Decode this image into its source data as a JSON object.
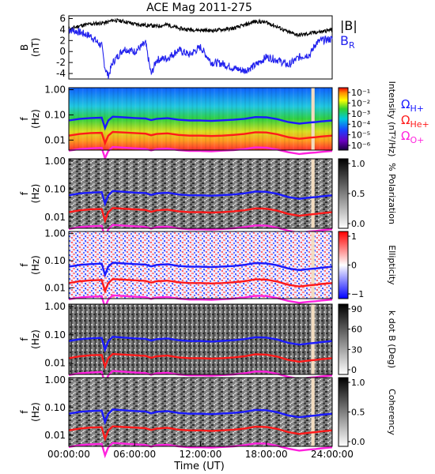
{
  "title": "ACE Mag 2011-275",
  "colors": {
    "B": "#000000",
    "BR": "#2222ee",
    "H": "#1a1aff",
    "He": "#ff1a1a",
    "O": "#ff22dd",
    "stripe": "#f2dcc0"
  },
  "legend": {
    "B": "|B|",
    "BR_main": "B",
    "BR_sub": "R",
    "H_main": "Ω",
    "H_sub": "H+",
    "He_main": "Ω",
    "He_sub": "He+",
    "O_main": "Ω",
    "O_sub": "O+"
  },
  "chart_data": [
    {
      "type": "line",
      "name": "field",
      "ylabel_main": "B",
      "ylabel_unit": "(nT)",
      "ylim": [
        -5,
        6.5
      ],
      "yticks": [
        "6",
        "4",
        "2",
        "0",
        "-2",
        "-4"
      ],
      "series": [
        {
          "name": "|B|",
          "x": [
            0,
            1,
            2,
            3,
            3.5,
            4,
            5,
            6,
            7,
            8,
            9,
            10,
            11,
            12,
            13,
            14,
            15,
            16,
            17,
            18,
            19,
            20,
            21,
            22,
            22.5,
            23,
            24
          ],
          "values": [
            4.0,
            4.7,
            5.0,
            5.2,
            5.3,
            5.7,
            5.5,
            5.0,
            4.8,
            4.6,
            4.9,
            4.2,
            4.0,
            3.9,
            3.8,
            4.0,
            4.2,
            4.8,
            5.5,
            5.3,
            4.5,
            3.5,
            3.0,
            3.3,
            3.5,
            3.6,
            4.0
          ]
        },
        {
          "name": "B_R",
          "x": [
            0,
            1,
            2,
            3,
            3.3,
            3.6,
            4,
            5,
            6,
            7,
            7.5,
            8,
            9,
            10,
            11,
            12,
            13,
            14,
            15,
            16,
            17,
            18,
            19,
            20,
            21,
            22,
            22.5,
            23,
            24
          ],
          "values": [
            4.0,
            3.5,
            2.8,
            1.0,
            -3.0,
            -4.5,
            -2.0,
            0.5,
            0.0,
            1.5,
            -4.2,
            -1.5,
            -1.2,
            0.3,
            -0.6,
            0.8,
            -2.0,
            -2.2,
            -3.0,
            -3.5,
            -2.5,
            -1.0,
            -1.5,
            -2.5,
            -1.0,
            -0.5,
            1.5,
            2.0,
            2.3
          ]
        }
      ]
    },
    {
      "type": "heatmap",
      "name": "intensity",
      "ylabel_main": "f",
      "ylabel_unit": "(Hz)",
      "colorbar_label": "Intensity (nT²/Hz)",
      "colorbar_ticks": [
        "10⁻¹",
        "10⁻²",
        "10⁻³",
        "10⁻⁴",
        "10⁻⁵",
        "10⁻⁶"
      ]
    },
    {
      "type": "heatmap",
      "name": "polarization",
      "ylabel_main": "f",
      "ylabel_unit": "(Hz)",
      "colorbar_label": "% Polarization",
      "colorbar_ticks": [
        "1.0",
        "0.5",
        "0.0"
      ]
    },
    {
      "type": "heatmap",
      "name": "ellipticity",
      "ylabel_main": "f",
      "ylabel_unit": "(Hz)",
      "colorbar_label": "Ellipticity",
      "colorbar_ticks": [
        "1",
        "0",
        "−1"
      ]
    },
    {
      "type": "heatmap",
      "name": "kdotb",
      "ylabel_main": "f",
      "ylabel_unit": "(Hz)",
      "colorbar_label": "k dot B (Deg)",
      "colorbar_ticks": [
        "90",
        "60",
        "30",
        "0"
      ]
    },
    {
      "type": "heatmap",
      "name": "coherency",
      "ylabel_main": "f",
      "ylabel_unit": "(Hz)",
      "colorbar_label": "Coherency",
      "colorbar_ticks": [
        "1.0",
        "0.5",
        "0.0"
      ]
    }
  ],
  "freq_axis": {
    "ylim": [
      0.004,
      1.2
    ],
    "yticks": [
      1.0,
      0.1,
      0.01
    ],
    "ytick_labels": [
      "1.00",
      "0.10",
      "0.01"
    ]
  },
  "gyro": {
    "x": [
      0,
      1,
      2,
      3,
      3.3,
      3.6,
      4,
      5,
      6,
      7,
      7.5,
      8,
      9,
      10,
      11,
      12,
      13,
      14,
      15,
      16,
      17,
      18,
      19,
      20,
      21,
      22,
      22.5,
      23,
      24
    ],
    "H": [
      0.06,
      0.07,
      0.075,
      0.078,
      0.03,
      0.06,
      0.085,
      0.08,
      0.075,
      0.072,
      0.062,
      0.07,
      0.074,
      0.064,
      0.06,
      0.06,
      0.058,
      0.061,
      0.064,
      0.07,
      0.082,
      0.08,
      0.068,
      0.052,
      0.045,
      0.05,
      0.052,
      0.055,
      0.06
    ],
    "He": [
      0.015,
      0.0175,
      0.019,
      0.0195,
      0.0075,
      0.015,
      0.021,
      0.02,
      0.019,
      0.018,
      0.0155,
      0.0175,
      0.0185,
      0.016,
      0.015,
      0.015,
      0.0145,
      0.015,
      0.016,
      0.0175,
      0.0205,
      0.02,
      0.017,
      0.013,
      0.0112,
      0.0125,
      0.013,
      0.0138,
      0.015
    ],
    "O": [
      0.0038,
      0.0044,
      0.0047,
      0.0049,
      0.0019,
      0.0037,
      0.0053,
      0.005,
      0.0047,
      0.0045,
      0.0039,
      0.0044,
      0.0046,
      0.004,
      0.0037,
      0.0037,
      0.0036,
      0.0038,
      0.004,
      0.0044,
      0.0051,
      0.005,
      0.0042,
      0.0033,
      0.0028,
      0.0031,
      0.0032,
      0.0034,
      0.0037
    ]
  },
  "xaxis": {
    "label": "Time (UT)",
    "range": [
      0,
      24
    ],
    "ticks": [
      0,
      6,
      12,
      18,
      24
    ],
    "tick_labels": [
      "00:00:00",
      "06:00:00",
      "12:00:00",
      "18:00:00",
      "24:00:00"
    ]
  },
  "data_gap_hours": [
    22.1,
    22.4
  ]
}
